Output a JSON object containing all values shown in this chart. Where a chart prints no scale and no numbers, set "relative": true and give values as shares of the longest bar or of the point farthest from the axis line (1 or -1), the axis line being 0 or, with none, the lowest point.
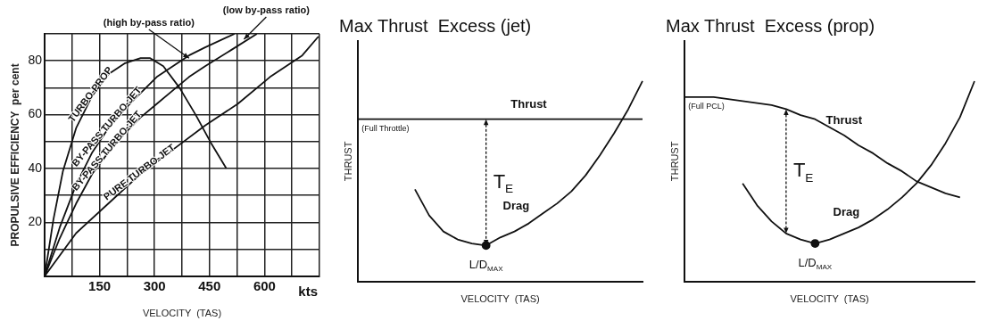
{
  "chart_data": [
    {
      "type": "line",
      "xlabel": "VELOCITY  (TAS)",
      "ylabel": "PROPULSIVE EFFICIENCY  per cent",
      "xlim": [
        0,
        750
      ],
      "ylim": [
        0,
        90
      ],
      "xticks": [
        {
          "value": 0,
          "label": null
        },
        {
          "value": 75,
          "label": null
        },
        150,
        {
          "value": 225,
          "label": null
        },
        300,
        {
          "value": 375,
          "label": null
        },
        450,
        {
          "value": 525,
          "label": null
        },
        600,
        {
          "value": 675,
          "label": null
        },
        {
          "value": 750,
          "label": null
        }
      ],
      "yticks": [
        {
          "value": 0,
          "label": null
        },
        {
          "value": 10,
          "label": null
        },
        20,
        {
          "value": 30,
          "label": null
        },
        40,
        {
          "value": 50,
          "label": null
        },
        60,
        {
          "value": 70,
          "label": null
        },
        80,
        {
          "value": 90,
          "label": null
        }
      ],
      "grid": true,
      "series": [
        {
          "name": "TURBO-PROP",
          "color": "#111111",
          "x": [
            0,
            24,
            50,
            86,
            130,
            174,
            218,
            262,
            288,
            324,
            368,
            412,
            456,
            496
          ],
          "values": [
            0,
            21,
            39,
            55,
            67,
            75,
            79,
            81,
            81,
            78,
            70,
            60,
            49,
            40
          ]
        },
        {
          "name": "BY-PASS TURBO-JET",
          "color": "#111111",
          "x": [
            0,
            41,
            86,
            130,
            174,
            218,
            262,
            306,
            350,
            394,
            438,
            518
          ],
          "values": [
            0,
            18,
            34,
            46,
            55,
            62,
            68,
            74,
            78,
            82,
            85,
            90
          ]
        },
        {
          "name": "BY-PASS TURBO-JET",
          "color": "#111111",
          "x": [
            0,
            41,
            86,
            130,
            174,
            218,
            262,
            306,
            350,
            394,
            438,
            509,
            579
          ],
          "values": [
            0,
            14,
            27,
            38,
            46,
            53,
            59,
            64,
            69,
            74,
            78,
            84,
            90
          ]
        },
        {
          "name": "PURE TURBO-JET",
          "color": "#111111",
          "x": [
            0,
            86,
            174,
            262,
            350,
            438,
            527,
            615,
            703,
            747
          ],
          "values": [
            0,
            16,
            27,
            38,
            47,
            56,
            64,
            74,
            82,
            89
          ]
        }
      ],
      "annotations": [
        {
          "text": "(high by-pass ratio)",
          "x": 394,
          "y": 81
        },
        {
          "text": "(low by-pass ratio)",
          "x": 544,
          "y": 88
        },
        "kts"
      ]
    },
    {
      "type": "line",
      "title": "Max Thrust  Excess (jet)",
      "xlabel": "VELOCITY  (TAS)",
      "ylabel": "THRUST",
      "relative": true,
      "tick_labels": false,
      "categories": [
        null,
        null,
        null,
        null,
        null,
        null,
        null,
        null,
        null,
        null,
        null,
        null,
        null,
        null,
        null,
        null,
        null,
        null,
        null,
        null,
        null
      ],
      "series": [
        {
          "name": "Thrust",
          "color": "#111111",
          "values": [
            0.81,
            0.81,
            0.81,
            0.81,
            0.81,
            0.81,
            0.81,
            0.81,
            0.81,
            0.81,
            0.81,
            0.81,
            0.81,
            0.81,
            0.81,
            0.81,
            0.81,
            0.81,
            0.81,
            0.81,
            0.81
          ]
        },
        {
          "name": "Drag",
          "color": "#111111",
          "values": [
            null,
            null,
            null,
            null,
            0.46,
            0.33,
            0.25,
            0.21,
            0.19,
            0.18,
            0.22,
            0.25,
            0.29,
            0.34,
            0.39,
            0.45,
            0.53,
            0.63,
            0.74,
            0.86,
            1
          ]
        }
      ],
      "annotations": [
        "(Full Throttle)",
        "T$_{E}$",
        "L/D$_{MAX}$"
      ]
    },
    {
      "type": "line",
      "title": "Max Thrust  Excess (prop)",
      "xlabel": "VELOCITY  (TAS)",
      "ylabel": "THRUST",
      "relative": true,
      "tick_labels": false,
      "categories": [
        null,
        null,
        null,
        null,
        null,
        null,
        null,
        null,
        null,
        null,
        null,
        null,
        null,
        null,
        null,
        null,
        null,
        null,
        null,
        null,
        null
      ],
      "series": [
        {
          "name": "Thrust",
          "color": "#111111",
          "values": [
            0.92,
            0.92,
            0.92,
            0.91,
            0.9,
            0.89,
            0.88,
            0.86,
            0.83,
            0.81,
            0.77,
            0.73,
            0.68,
            0.64,
            0.59,
            0.55,
            0.5,
            0.47,
            0.44,
            0.42,
            null
          ]
        },
        {
          "name": "Drag",
          "color": "#111111",
          "values": [
            null,
            null,
            null,
            null,
            0.49,
            0.38,
            0.3,
            0.24,
            0.21,
            0.19,
            0.21,
            0.24,
            0.27,
            0.31,
            0.36,
            0.42,
            0.49,
            0.58,
            0.69,
            0.82,
            1
          ]
        }
      ],
      "annotations": [
        "(Full PCL)",
        "T$_{E}$",
        "L/D$_{MAX}$"
      ]
    }
  ]
}
